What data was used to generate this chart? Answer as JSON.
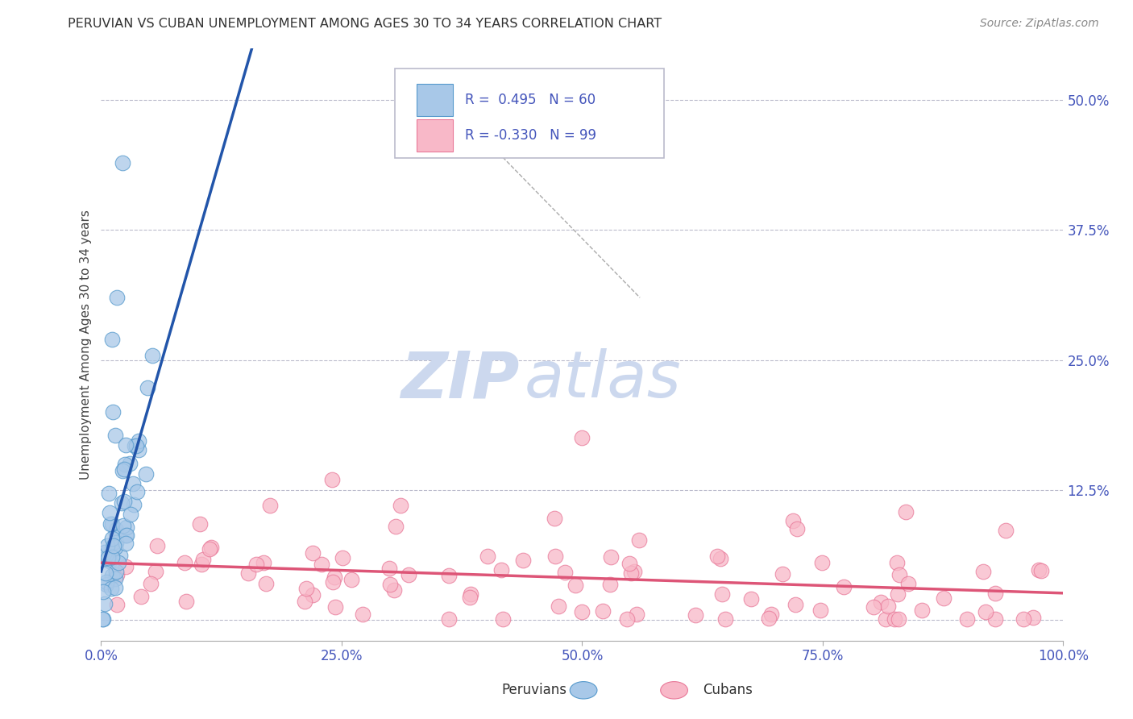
{
  "title": "PERUVIAN VS CUBAN UNEMPLOYMENT AMONG AGES 30 TO 34 YEARS CORRELATION CHART",
  "source": "Source: ZipAtlas.com",
  "ylabel": "Unemployment Among Ages 30 to 34 years",
  "xlim": [
    0.0,
    1.0
  ],
  "ylim": [
    -0.02,
    0.55
  ],
  "xticks": [
    0.0,
    0.25,
    0.5,
    0.75,
    1.0
  ],
  "xtick_labels": [
    "0.0%",
    "25.0%",
    "50.0%",
    "75.0%",
    "100.0%"
  ],
  "yticks": [
    0.0,
    0.125,
    0.25,
    0.375,
    0.5
  ],
  "ytick_labels": [
    "",
    "12.5%",
    "25.0%",
    "37.5%",
    "50.0%"
  ],
  "peruvian_color": "#a8c8e8",
  "peruvian_edge": "#5599cc",
  "cuban_color": "#f8b8c8",
  "cuban_edge": "#e87898",
  "peruvian_line_color": "#2255aa",
  "cuban_line_color": "#dd5577",
  "peruvian_R": 0.495,
  "peruvian_N": 60,
  "cuban_R": -0.33,
  "cuban_N": 99,
  "legend_label1": "Peruvians",
  "legend_label2": "Cubans",
  "background_color": "#ffffff",
  "grid_color": "#bbbbcc",
  "title_color": "#333333",
  "axis_label_color": "#444444",
  "tick_color": "#4455bb",
  "legend_text_color": "#4455bb",
  "watermark_color": "#ccd8ee"
}
